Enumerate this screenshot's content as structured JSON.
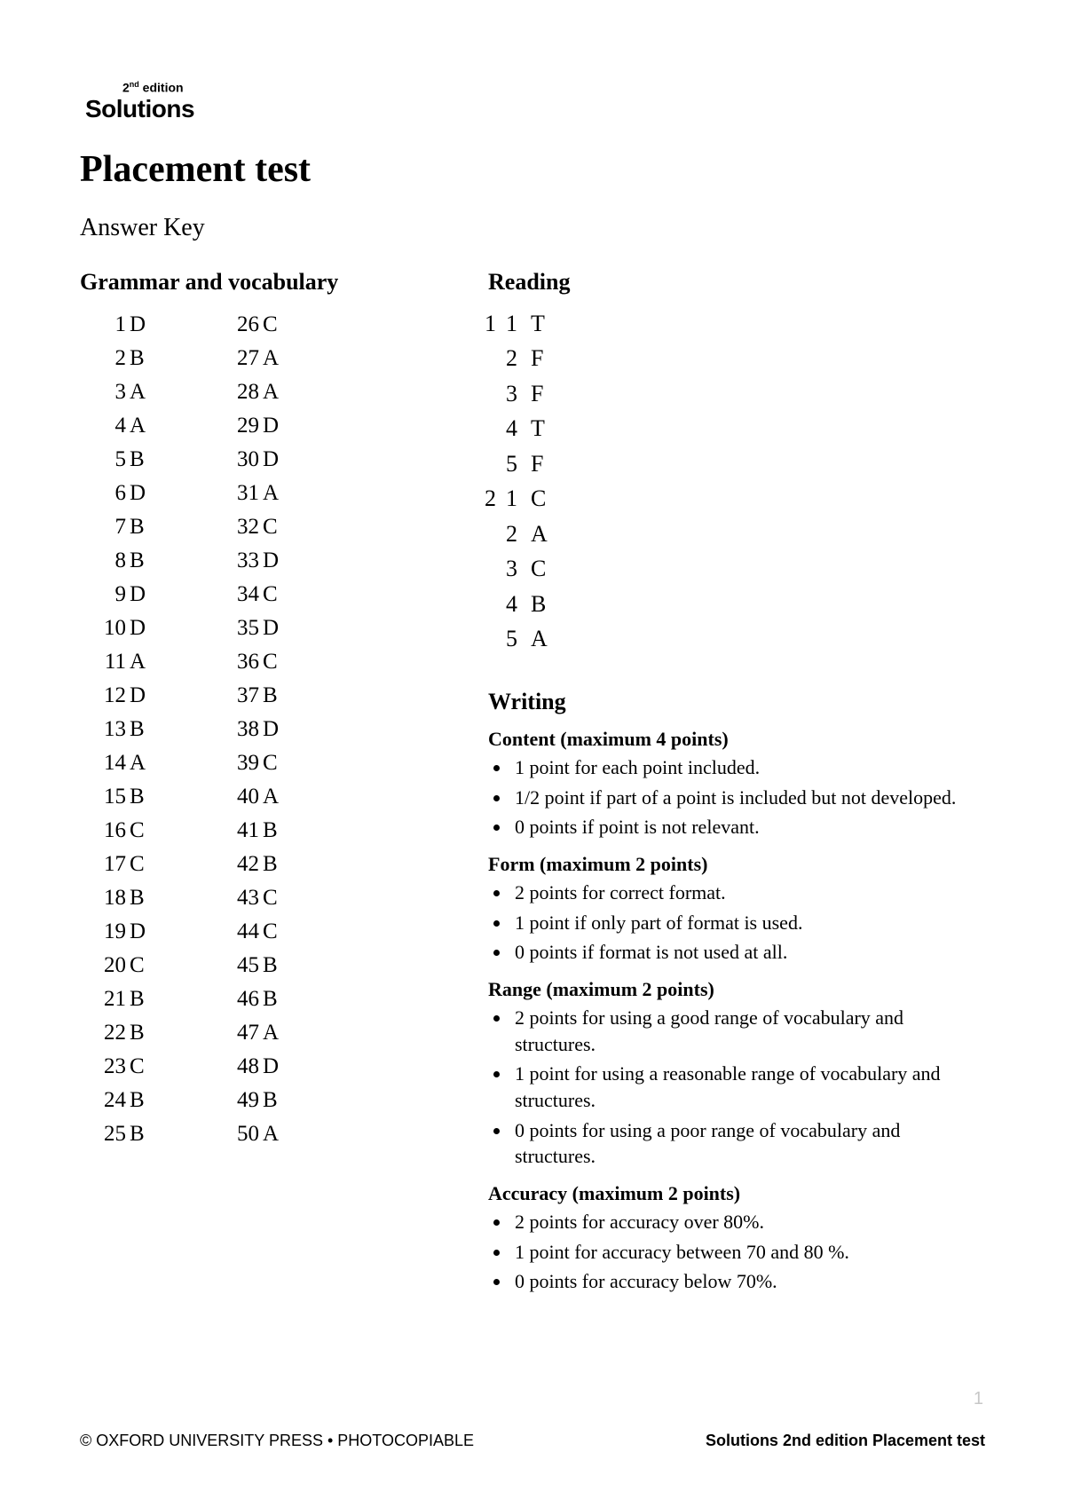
{
  "logo": {
    "edition_prefix": "2",
    "edition_sup": "nd",
    "edition_suffix": " edition",
    "brand": "Solutions"
  },
  "title": "Placement test",
  "subtitle": "Answer Key",
  "sections": {
    "grammar_vocab": {
      "heading": "Grammar and vocabulary",
      "col1": [
        {
          "n": "1",
          "a": "D"
        },
        {
          "n": "2",
          "a": "B"
        },
        {
          "n": "3",
          "a": "A"
        },
        {
          "n": "4",
          "a": "A"
        },
        {
          "n": "5",
          "a": "B"
        },
        {
          "n": "6",
          "a": "D"
        },
        {
          "n": "7",
          "a": "B"
        },
        {
          "n": "8",
          "a": "B"
        },
        {
          "n": "9",
          "a": "D"
        },
        {
          "n": "10",
          "a": "D"
        },
        {
          "n": "11",
          "a": "A"
        },
        {
          "n": "12",
          "a": "D"
        },
        {
          "n": "13",
          "a": "B"
        },
        {
          "n": "14",
          "a": "A"
        },
        {
          "n": "15",
          "a": "B"
        },
        {
          "n": "16",
          "a": "C"
        },
        {
          "n": "17",
          "a": "C"
        },
        {
          "n": "18",
          "a": "B"
        },
        {
          "n": "19",
          "a": "D"
        },
        {
          "n": "20",
          "a": "C"
        },
        {
          "n": "21",
          "a": "B"
        },
        {
          "n": "22",
          "a": "B"
        },
        {
          "n": "23",
          "a": "C"
        },
        {
          "n": "24",
          "a": "B"
        },
        {
          "n": "25",
          "a": "B"
        }
      ],
      "col2": [
        {
          "n": "26",
          "a": "C"
        },
        {
          "n": "27",
          "a": "A"
        },
        {
          "n": "28",
          "a": "A"
        },
        {
          "n": "29",
          "a": "D"
        },
        {
          "n": "30",
          "a": "D"
        },
        {
          "n": "31",
          "a": "A"
        },
        {
          "n": "32",
          "a": "C"
        },
        {
          "n": "33",
          "a": "D"
        },
        {
          "n": "34",
          "a": "C"
        },
        {
          "n": "35",
          "a": "D"
        },
        {
          "n": "36",
          "a": "C"
        },
        {
          "n": "37",
          "a": "B"
        },
        {
          "n": "38",
          "a": "D"
        },
        {
          "n": "39",
          "a": "C"
        },
        {
          "n": "40",
          "a": "A"
        },
        {
          "n": "41",
          "a": "B"
        },
        {
          "n": "42",
          "a": "B"
        },
        {
          "n": "43",
          "a": "C"
        },
        {
          "n": "44",
          "a": "C"
        },
        {
          "n": "45",
          "a": "B"
        },
        {
          "n": "46",
          "a": "B"
        },
        {
          "n": "47",
          "a": "A"
        },
        {
          "n": "48",
          "a": "D"
        },
        {
          "n": "49",
          "a": "B"
        },
        {
          "n": "50",
          "a": "A"
        }
      ]
    },
    "reading": {
      "heading": "Reading",
      "groups": [
        {
          "g": "1",
          "items": [
            {
              "n": "1",
              "a": "T"
            },
            {
              "n": "2",
              "a": "F"
            },
            {
              "n": "3",
              "a": "F"
            },
            {
              "n": "4",
              "a": "T"
            },
            {
              "n": "5",
              "a": "F"
            }
          ]
        },
        {
          "g": "2",
          "items": [
            {
              "n": "1",
              "a": "C"
            },
            {
              "n": "2",
              "a": "A"
            },
            {
              "n": "3",
              "a": "C"
            },
            {
              "n": "4",
              "a": "B"
            },
            {
              "n": "5",
              "a": "A"
            }
          ]
        }
      ]
    },
    "writing": {
      "heading": "Writing",
      "criteria": [
        {
          "title": "Content (maximum 4 points)",
          "points": [
            "1 point for each point included.",
            "1/2 point if part of a point is included but not developed.",
            "0 points if point is not relevant."
          ]
        },
        {
          "title": "Form (maximum 2 points)",
          "points": [
            "2 points for correct format.",
            "1 point if only part of format is used.",
            "0 points if format is not used at all."
          ]
        },
        {
          "title": "Range (maximum 2 points)",
          "points": [
            "2 points for using a good range of vocabulary and structures.",
            "1 point for using a reasonable range of vocabulary and structures.",
            "0 points for using a poor range of vocabulary and structures."
          ]
        },
        {
          "title": "Accuracy (maximum 2 points)",
          "points": [
            "2 points for accuracy over 80%.",
            "1 point for accuracy between 70 and 80 %.",
            "0 points for accuracy below 70%."
          ]
        }
      ]
    }
  },
  "footer": {
    "left": "© OXFORD UNIVERSITY PRESS • PHOTOCOPIABLE",
    "center": "Solutions 2nd edition Placement test"
  },
  "page_number": "1"
}
